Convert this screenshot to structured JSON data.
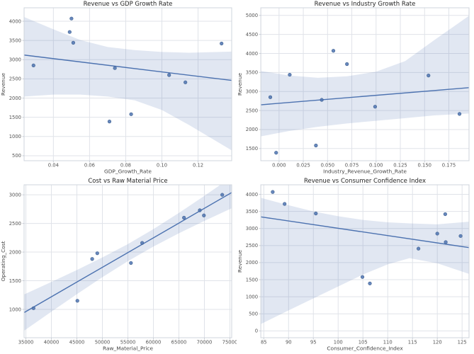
{
  "figure": {
    "background": "#ffffff",
    "accent": "#4c72b0",
    "band_fill": "rgba(76,114,176,0.17)",
    "point_fill": "#4c72b0",
    "point_stroke": "#3f618f",
    "grid_color": "#e0e3e9",
    "spine_color": "#cfd4dc",
    "tick_mark_color": "#c9ced6",
    "tick_label_color": "#555555",
    "axis_label_color": "#444444",
    "title_color": "#262626"
  },
  "chart_data": [
    {
      "type": "scatter",
      "title": "Revenue vs GDP Growth Rate",
      "xlabel": "GDP_Growth_Rate",
      "ylabel": "Revenue",
      "xlim": [
        0.0238,
        0.1386
      ],
      "ylim": [
        370,
        4350
      ],
      "grid": true,
      "legend": false,
      "xticks": {
        "values": [
          0.04,
          0.06,
          0.08,
          0.1,
          0.12
        ],
        "labels": [
          "0.04",
          "0.06",
          "0.08",
          "0.10",
          "0.12"
        ]
      },
      "yticks": {
        "values": [
          500,
          1000,
          1500,
          2000,
          2500,
          3000,
          3500,
          4000
        ],
        "labels": [
          "500",
          "1000",
          "1500",
          "2000",
          "2500",
          "3000",
          "3500",
          "4000"
        ]
      },
      "points": [
        [
          0.029,
          2850
        ],
        [
          0.049,
          3720
        ],
        [
          0.05,
          4070
        ],
        [
          0.051,
          3440
        ],
        [
          0.071,
          1390
        ],
        [
          0.074,
          2780
        ],
        [
          0.083,
          1580
        ],
        [
          0.104,
          2600
        ],
        [
          0.113,
          2410
        ],
        [
          0.133,
          3420
        ]
      ],
      "regression_line": {
        "x": [
          0.0238,
          0.1386
        ],
        "y": [
          3120,
          2460
        ]
      },
      "ci_band": {
        "x": [
          0.0238,
          0.04,
          0.055,
          0.07,
          0.085,
          0.1,
          0.115,
          0.1386
        ],
        "upper": [
          4110,
          3790,
          3510,
          3330,
          3250,
          3200,
          3180,
          3210
        ],
        "lower": [
          2040,
          2090,
          2090,
          2040,
          1940,
          1690,
          1300,
          640
        ]
      }
    },
    {
      "type": "scatter",
      "title": "Revenue vs Industry Growth Rate",
      "xlabel": "Industry_Revenue_Growth_Rate",
      "ylabel": "Revenue",
      "xlim": [
        -0.0188,
        0.1958
      ],
      "ylim": [
        1180,
        5200
      ],
      "grid": true,
      "legend": false,
      "xticks": {
        "values": [
          0.0,
          0.025,
          0.05,
          0.075,
          0.1,
          0.125,
          0.15,
          0.175
        ],
        "labels": [
          "0.000",
          "0.025",
          "0.050",
          "0.075",
          "0.100",
          "0.125",
          "0.150",
          "0.175"
        ]
      },
      "yticks": {
        "values": [
          1500,
          2000,
          2500,
          3000,
          3500,
          4000,
          4500,
          5000
        ],
        "labels": [
          "1500",
          "2000",
          "2500",
          "3000",
          "3500",
          "4000",
          "4500",
          "5000"
        ]
      },
      "points": [
        [
          -0.009,
          2850
        ],
        [
          -0.003,
          1390
        ],
        [
          0.011,
          3440
        ],
        [
          0.038,
          1580
        ],
        [
          0.044,
          2780
        ],
        [
          0.056,
          4070
        ],
        [
          0.07,
          3720
        ],
        [
          0.099,
          2600
        ],
        [
          0.154,
          3420
        ],
        [
          0.186,
          2410
        ]
      ],
      "regression_line": {
        "x": [
          -0.0188,
          0.1958
        ],
        "y": [
          2650,
          3100
        ]
      },
      "ci_band": {
        "x": [
          -0.0188,
          0.01,
          0.04,
          0.07,
          0.1,
          0.13,
          0.16,
          0.1958
        ],
        "upper": [
          3540,
          3420,
          3360,
          3400,
          3520,
          3800,
          4350,
          4990
        ],
        "lower": [
          1820,
          1960,
          2070,
          2160,
          2230,
          2300,
          2370,
          2420
        ]
      }
    },
    {
      "type": "scatter",
      "title": "Cost vs Raw Material Price",
      "xlabel": "Raw_Material_Price",
      "ylabel": "Operating_Cost",
      "xlim": [
        34650,
        75350
      ],
      "ylim": [
        505,
        3175
      ],
      "grid": true,
      "legend": false,
      "xticks": {
        "values": [
          35000,
          40000,
          45000,
          50000,
          55000,
          60000,
          65000,
          70000,
          75000
        ],
        "labels": [
          "35000",
          "40000",
          "45000",
          "50000",
          "55000",
          "60000",
          "65000",
          "70000",
          "75000"
        ]
      },
      "yticks": {
        "values": [
          1000,
          1500,
          2000,
          2500,
          3000
        ],
        "labels": [
          "1000",
          "1500",
          "2000",
          "2500",
          "3000"
        ]
      },
      "points": [
        [
          36500,
          1020
        ],
        [
          45100,
          1150
        ],
        [
          48000,
          1880
        ],
        [
          49000,
          1980
        ],
        [
          55600,
          1810
        ],
        [
          57800,
          2160
        ],
        [
          66000,
          2600
        ],
        [
          69100,
          2730
        ],
        [
          69900,
          2640
        ],
        [
          73500,
          3000
        ]
      ],
      "regression_line": {
        "x": [
          34650,
          75350
        ],
        "y": [
          944,
          3039
        ]
      },
      "ci_band": {
        "x": [
          34650,
          40000,
          45000,
          50000,
          55000,
          60000,
          65000,
          70000,
          75350
        ],
        "upper": [
          1261,
          1479,
          1687,
          1906,
          2140,
          2401,
          2684,
          2982,
          3312
        ],
        "lower": [
          627,
          959,
          1265,
          1562,
          1842,
          2097,
          2328,
          2544,
          2766
        ]
      }
    },
    {
      "type": "scatter",
      "title": "Revenue vs Consumer Confidence Index",
      "xlabel": "Consumer_Confidence_Index",
      "ylabel": "Revenue",
      "xlim": [
        84.4,
        126.4
      ],
      "ylim": [
        -200,
        4280
      ],
      "grid": true,
      "legend": false,
      "xticks": {
        "values": [
          85,
          90,
          95,
          100,
          105,
          110,
          115,
          120,
          125
        ],
        "labels": [
          "85",
          "90",
          "95",
          "100",
          "105",
          "110",
          "115",
          "120",
          "125"
        ]
      },
      "yticks": {
        "values": [
          0,
          500,
          1000,
          1500,
          2000,
          2500,
          3000,
          3500,
          4000
        ],
        "labels": [
          "0",
          "500",
          "1000",
          "1500",
          "2000",
          "2500",
          "3000",
          "3500",
          "4000"
        ]
      },
      "points": [
        [
          86.8,
          4070
        ],
        [
          89.2,
          3720
        ],
        [
          95.5,
          3440
        ],
        [
          104.9,
          1580
        ],
        [
          106.4,
          1390
        ],
        [
          116.2,
          2410
        ],
        [
          120.0,
          2850
        ],
        [
          121.6,
          3420
        ],
        [
          121.7,
          2600
        ],
        [
          124.7,
          2780
        ]
      ],
      "regression_line": {
        "x": [
          84.4,
          126.4
        ],
        "y": [
          3340,
          2440
        ]
      },
      "ci_band": {
        "x": [
          84.4,
          90,
          95,
          100,
          105,
          110,
          114.4,
          120,
          126.4
        ],
        "upper": [
          3900,
          3680,
          3500,
          3360,
          3250,
          3180,
          3150,
          3120,
          3200
        ],
        "lower": [
          200,
          600,
          950,
          1300,
          1650,
          1950,
          2130,
          1980,
          1670
        ]
      }
    }
  ]
}
